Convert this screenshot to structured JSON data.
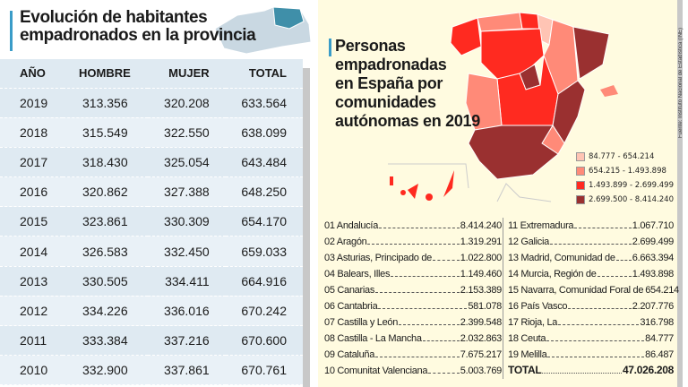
{
  "left": {
    "title_line1": "Evolución de habitantes",
    "title_line2": "empadronados en la provincia",
    "headers": [
      "AÑO",
      "HOMBRE",
      "MUJER",
      "TOTAL"
    ],
    "rows": [
      [
        "2019",
        "313.356",
        "320.208",
        "633.564"
      ],
      [
        "2018",
        "315.549",
        "322.550",
        "638.099"
      ],
      [
        "2017",
        "318.430",
        "325.054",
        "643.484"
      ],
      [
        "2016",
        "320.862",
        "327.388",
        "648.250"
      ],
      [
        "2015",
        "323.861",
        "330.309",
        "654.170"
      ],
      [
        "2014",
        "326.583",
        "332.450",
        "659.033"
      ],
      [
        "2013",
        "330.505",
        "334.411",
        "664.916"
      ],
      [
        "2012",
        "334.226",
        "336.016",
        "670.242"
      ],
      [
        "2011",
        "333.384",
        "337.216",
        "670.600"
      ],
      [
        "2010",
        "332.900",
        "337.861",
        "670.761"
      ]
    ]
  },
  "right": {
    "title_lines": [
      "Personas",
      "empadronadas",
      "en España por",
      "comunidades",
      "autónomas en 2019"
    ],
    "legend": [
      {
        "label": "84.777 - 654.214",
        "color": "#ffc4b4"
      },
      {
        "label": "654.215 - 1.493.898",
        "color": "#ff8a78"
      },
      {
        "label": "1.493.899 - 2.699.499",
        "color": "#ff2a20"
      },
      {
        "label": "2.699.500 - 8.414.240",
        "color": "#9a3030"
      }
    ],
    "col1": [
      [
        "01 Andalucía",
        "8.414.240"
      ],
      [
        "02 Aragón",
        "1.319.291"
      ],
      [
        "03 Asturias, Principado de",
        "1.022.800"
      ],
      [
        "04 Balears, Illes",
        "1.149.460"
      ],
      [
        "05 Canarias",
        "2.153.389"
      ],
      [
        "06 Cantabria",
        "581.078"
      ],
      [
        "07 Castilla y León",
        "2.399.548"
      ],
      [
        "08 Castilla - La Mancha",
        "2.032.863"
      ],
      [
        "09 Cataluña",
        "7.675.217"
      ],
      [
        "10 Comunitat Valenciana",
        "5.003.769"
      ]
    ],
    "col2": [
      [
        "11 Extremadura",
        "1.067.710"
      ],
      [
        "12 Galicia",
        "2.699.499"
      ],
      [
        "13 Madrid, Comunidad de",
        "6.663.394"
      ],
      [
        "14 Murcia, Región de",
        "1.493.898"
      ],
      [
        "15 Navarra, Comunidad Foral de",
        "654.214"
      ],
      [
        "16 País Vasco",
        "2.207.776"
      ],
      [
        "17 Rioja, La",
        "316.798"
      ],
      [
        "18 Ceuta",
        "84.777"
      ],
      [
        "19 Melilla",
        "86.487"
      ]
    ],
    "total_label": "TOTAL",
    "total_value": "47.026.208",
    "source": "Fuente: Instituto Nacional de Estadística (INE)"
  },
  "chart_data": {
    "type": "table",
    "title": "Evolución de habitantes empadronados en la provincia",
    "columns": [
      "AÑO",
      "HOMBRE",
      "MUJER",
      "TOTAL"
    ],
    "rows": [
      [
        2019,
        313356,
        320208,
        633564
      ],
      [
        2018,
        315549,
        322550,
        638099
      ],
      [
        2017,
        318430,
        325054,
        643484
      ],
      [
        2016,
        320862,
        327388,
        648250
      ],
      [
        2015,
        323861,
        330309,
        654170
      ],
      [
        2014,
        326583,
        332450,
        659033
      ],
      [
        2013,
        330505,
        334411,
        664916
      ],
      [
        2012,
        334226,
        336016,
        670242
      ],
      [
        2011,
        333384,
        337216,
        670600
      ],
      [
        2010,
        332900,
        337861,
        670761
      ]
    ]
  }
}
